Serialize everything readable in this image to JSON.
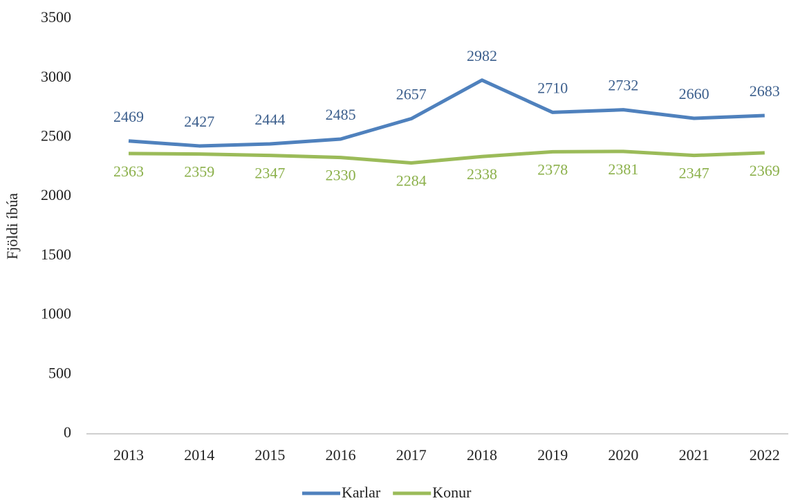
{
  "chart_data": {
    "type": "line",
    "y_axis_label": "Fjöldi íbúa",
    "categories": [
      "2013",
      "2014",
      "2015",
      "2016",
      "2017",
      "2018",
      "2019",
      "2020",
      "2021",
      "2022"
    ],
    "series": [
      {
        "name": "Karlar",
        "color": "#4f81bd",
        "values": [
          2469,
          2427,
          2444,
          2485,
          2657,
          2982,
          2710,
          2732,
          2660,
          2683
        ]
      },
      {
        "name": "Konur",
        "color": "#9bbb59",
        "values": [
          2363,
          2359,
          2347,
          2330,
          2284,
          2338,
          2378,
          2381,
          2347,
          2369
        ]
      }
    ],
    "ylim": [
      0,
      3500
    ],
    "yticks": [
      0,
      500,
      1000,
      1500,
      2000,
      2500,
      3000,
      3500
    ],
    "grid": false,
    "legend": "bottom"
  }
}
